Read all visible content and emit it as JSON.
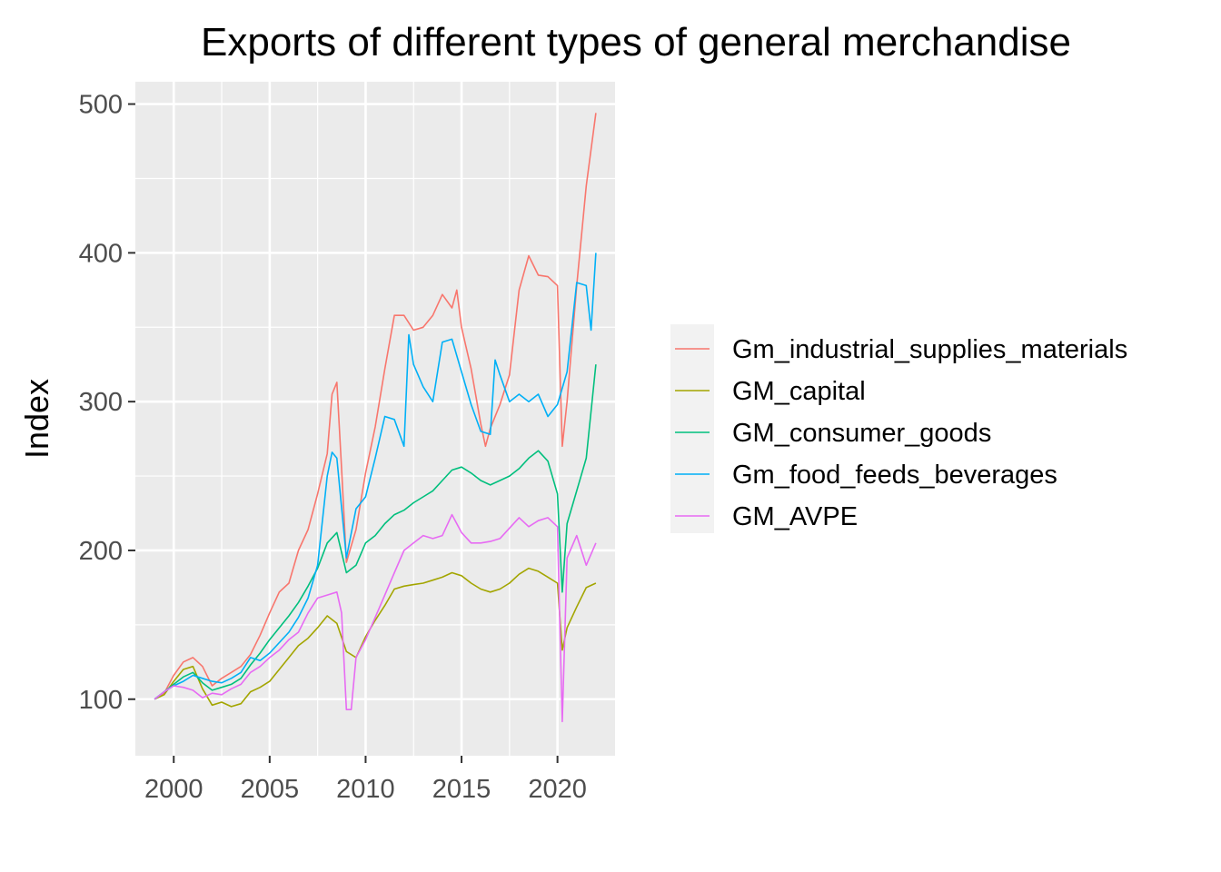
{
  "chart_data": {
    "type": "line",
    "title": "Exports of different types of general merchandise",
    "xlabel": "",
    "ylabel": "Index",
    "xlim": [
      1998.0,
      2023.0
    ],
    "ylim": [
      62,
      515
    ],
    "x_ticks": [
      2000,
      2005,
      2010,
      2015,
      2020
    ],
    "y_ticks": [
      100,
      200,
      300,
      400,
      500
    ],
    "grid": true,
    "legend_position": "right",
    "colors": [
      "#F8766D",
      "#A3A500",
      "#00BF7D",
      "#00B0F6",
      "#E76BF3"
    ],
    "series": [
      {
        "name": "Gm_industrial_supplies_materials",
        "color": "#F8766D",
        "points": [
          [
            1999,
            100
          ],
          [
            1999.5,
            104
          ],
          [
            2000,
            116
          ],
          [
            2000.5,
            125
          ],
          [
            2001,
            128
          ],
          [
            2001.5,
            122
          ],
          [
            2002,
            109
          ],
          [
            2002.5,
            114
          ],
          [
            2003,
            118
          ],
          [
            2003.5,
            122
          ],
          [
            2004,
            130
          ],
          [
            2004.5,
            143
          ],
          [
            2005,
            158
          ],
          [
            2005.5,
            172
          ],
          [
            2006,
            178
          ],
          [
            2006.5,
            200
          ],
          [
            2007,
            214
          ],
          [
            2007.5,
            238
          ],
          [
            2008,
            265
          ],
          [
            2008.25,
            305
          ],
          [
            2008.5,
            313
          ],
          [
            2008.75,
            255
          ],
          [
            2009,
            192
          ],
          [
            2009.5,
            214
          ],
          [
            2010,
            252
          ],
          [
            2010.5,
            283
          ],
          [
            2011,
            322
          ],
          [
            2011.5,
            358
          ],
          [
            2012,
            358
          ],
          [
            2012.5,
            348
          ],
          [
            2013,
            350
          ],
          [
            2013.5,
            358
          ],
          [
            2014,
            372
          ],
          [
            2014.5,
            363
          ],
          [
            2014.75,
            375
          ],
          [
            2015,
            350
          ],
          [
            2015.5,
            322
          ],
          [
            2016,
            285
          ],
          [
            2016.25,
            270
          ],
          [
            2016.5,
            282
          ],
          [
            2017,
            298
          ],
          [
            2017.5,
            318
          ],
          [
            2018,
            375
          ],
          [
            2018.5,
            398
          ],
          [
            2019,
            385
          ],
          [
            2019.5,
            384
          ],
          [
            2020,
            378
          ],
          [
            2020.25,
            270
          ],
          [
            2020.5,
            300
          ],
          [
            2021,
            378
          ],
          [
            2021.5,
            445
          ],
          [
            2022,
            494
          ]
        ]
      },
      {
        "name": "GM_capital",
        "color": "#A3A500",
        "points": [
          [
            1999,
            100
          ],
          [
            1999.5,
            103
          ],
          [
            2000,
            112
          ],
          [
            2000.5,
            120
          ],
          [
            2001,
            122
          ],
          [
            2001.5,
            107
          ],
          [
            2002,
            96
          ],
          [
            2002.5,
            98
          ],
          [
            2003,
            95
          ],
          [
            2003.5,
            97
          ],
          [
            2004,
            105
          ],
          [
            2004.5,
            108
          ],
          [
            2005,
            112
          ],
          [
            2005.5,
            120
          ],
          [
            2006,
            128
          ],
          [
            2006.5,
            136
          ],
          [
            2007,
            141
          ],
          [
            2007.5,
            148
          ],
          [
            2008,
            156
          ],
          [
            2008.5,
            151
          ],
          [
            2009,
            132
          ],
          [
            2009.5,
            128
          ],
          [
            2010,
            142
          ],
          [
            2010.5,
            153
          ],
          [
            2011,
            163
          ],
          [
            2011.5,
            174
          ],
          [
            2012,
            176
          ],
          [
            2012.5,
            177
          ],
          [
            2013,
            178
          ],
          [
            2013.5,
            180
          ],
          [
            2014,
            182
          ],
          [
            2014.5,
            185
          ],
          [
            2015,
            183
          ],
          [
            2015.5,
            178
          ],
          [
            2016,
            174
          ],
          [
            2016.5,
            172
          ],
          [
            2017,
            174
          ],
          [
            2017.5,
            178
          ],
          [
            2018,
            184
          ],
          [
            2018.5,
            188
          ],
          [
            2019,
            186
          ],
          [
            2019.5,
            182
          ],
          [
            2020,
            178
          ],
          [
            2020.25,
            133
          ],
          [
            2020.5,
            148
          ],
          [
            2021,
            162
          ],
          [
            2021.5,
            175
          ],
          [
            2022,
            178
          ]
        ]
      },
      {
        "name": "GM_consumer_goods",
        "color": "#00BF7D",
        "points": [
          [
            1999,
            100
          ],
          [
            1999.5,
            105
          ],
          [
            2000,
            110
          ],
          [
            2000.5,
            115
          ],
          [
            2001,
            118
          ],
          [
            2001.5,
            111
          ],
          [
            2002,
            106
          ],
          [
            2002.5,
            108
          ],
          [
            2003,
            110
          ],
          [
            2003.5,
            114
          ],
          [
            2004,
            123
          ],
          [
            2004.5,
            131
          ],
          [
            2005,
            140
          ],
          [
            2005.5,
            148
          ],
          [
            2006,
            156
          ],
          [
            2006.5,
            165
          ],
          [
            2007,
            176
          ],
          [
            2007.5,
            188
          ],
          [
            2008,
            205
          ],
          [
            2008.5,
            212
          ],
          [
            2009,
            185
          ],
          [
            2009.5,
            190
          ],
          [
            2010,
            205
          ],
          [
            2010.5,
            210
          ],
          [
            2011,
            218
          ],
          [
            2011.5,
            224
          ],
          [
            2012,
            227
          ],
          [
            2012.5,
            232
          ],
          [
            2013,
            236
          ],
          [
            2013.5,
            240
          ],
          [
            2014,
            247
          ],
          [
            2014.5,
            254
          ],
          [
            2015,
            256
          ],
          [
            2015.5,
            252
          ],
          [
            2016,
            247
          ],
          [
            2016.5,
            244
          ],
          [
            2017,
            247
          ],
          [
            2017.5,
            250
          ],
          [
            2018,
            255
          ],
          [
            2018.5,
            262
          ],
          [
            2019,
            267
          ],
          [
            2019.5,
            260
          ],
          [
            2020,
            238
          ],
          [
            2020.25,
            172
          ],
          [
            2020.5,
            218
          ],
          [
            2021,
            240
          ],
          [
            2021.5,
            262
          ],
          [
            2022,
            325
          ]
        ]
      },
      {
        "name": "Gm_food_feeds_beverages",
        "color": "#00B0F6",
        "points": [
          [
            1999,
            100
          ],
          [
            1999.5,
            105
          ],
          [
            2000,
            109
          ],
          [
            2000.5,
            112
          ],
          [
            2001,
            116
          ],
          [
            2001.5,
            114
          ],
          [
            2002,
            112
          ],
          [
            2002.5,
            111
          ],
          [
            2003,
            114
          ],
          [
            2003.5,
            118
          ],
          [
            2004,
            128
          ],
          [
            2004.5,
            126
          ],
          [
            2005,
            131
          ],
          [
            2005.5,
            138
          ],
          [
            2006,
            145
          ],
          [
            2006.5,
            155
          ],
          [
            2007,
            168
          ],
          [
            2007.5,
            190
          ],
          [
            2008,
            250
          ],
          [
            2008.25,
            266
          ],
          [
            2008.5,
            262
          ],
          [
            2009,
            195
          ],
          [
            2009.5,
            228
          ],
          [
            2010,
            236
          ],
          [
            2010.5,
            262
          ],
          [
            2011,
            290
          ],
          [
            2011.5,
            288
          ],
          [
            2012,
            270
          ],
          [
            2012.25,
            345
          ],
          [
            2012.5,
            325
          ],
          [
            2013,
            310
          ],
          [
            2013.5,
            300
          ],
          [
            2014,
            340
          ],
          [
            2014.5,
            342
          ],
          [
            2015,
            320
          ],
          [
            2015.5,
            298
          ],
          [
            2016,
            280
          ],
          [
            2016.5,
            278
          ],
          [
            2016.75,
            328
          ],
          [
            2017,
            318
          ],
          [
            2017.5,
            300
          ],
          [
            2018,
            305
          ],
          [
            2018.5,
            300
          ],
          [
            2019,
            305
          ],
          [
            2019.5,
            290
          ],
          [
            2020,
            298
          ],
          [
            2020.5,
            320
          ],
          [
            2021,
            380
          ],
          [
            2021.5,
            378
          ],
          [
            2021.75,
            348
          ],
          [
            2022,
            400
          ]
        ]
      },
      {
        "name": "GM_AVPE",
        "color": "#E76BF3",
        "points": [
          [
            1999,
            100
          ],
          [
            1999.5,
            105
          ],
          [
            2000,
            109
          ],
          [
            2000.5,
            108
          ],
          [
            2001,
            106
          ],
          [
            2001.5,
            101
          ],
          [
            2002,
            104
          ],
          [
            2002.5,
            103
          ],
          [
            2003,
            107
          ],
          [
            2003.5,
            110
          ],
          [
            2004,
            118
          ],
          [
            2004.5,
            122
          ],
          [
            2005,
            128
          ],
          [
            2005.5,
            133
          ],
          [
            2006,
            140
          ],
          [
            2006.5,
            145
          ],
          [
            2007,
            158
          ],
          [
            2007.5,
            168
          ],
          [
            2008,
            170
          ],
          [
            2008.5,
            172
          ],
          [
            2008.75,
            158
          ],
          [
            2009,
            93
          ],
          [
            2009.25,
            93
          ],
          [
            2009.5,
            128
          ],
          [
            2010,
            140
          ],
          [
            2010.5,
            155
          ],
          [
            2011,
            170
          ],
          [
            2011.5,
            185
          ],
          [
            2012,
            200
          ],
          [
            2012.5,
            205
          ],
          [
            2013,
            210
          ],
          [
            2013.5,
            208
          ],
          [
            2014,
            210
          ],
          [
            2014.5,
            224
          ],
          [
            2015,
            212
          ],
          [
            2015.5,
            205
          ],
          [
            2016,
            205
          ],
          [
            2016.5,
            206
          ],
          [
            2017,
            208
          ],
          [
            2017.5,
            215
          ],
          [
            2018,
            222
          ],
          [
            2018.5,
            216
          ],
          [
            2019,
            220
          ],
          [
            2019.5,
            222
          ],
          [
            2020,
            216
          ],
          [
            2020.25,
            85
          ],
          [
            2020.5,
            195
          ],
          [
            2021,
            210
          ],
          [
            2021.5,
            190
          ],
          [
            2022,
            205
          ]
        ]
      }
    ]
  }
}
